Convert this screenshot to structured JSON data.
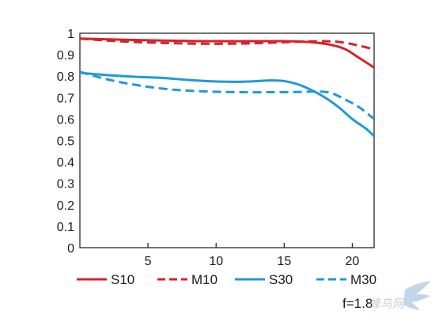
{
  "chart_data": {
    "type": "line",
    "title": "",
    "xlabel": "",
    "ylabel": "",
    "xlim": [
      0,
      21.6
    ],
    "ylim": [
      0,
      1
    ],
    "x_ticks": [
      5,
      10,
      15,
      20
    ],
    "x_tick_labels": [
      "5",
      "10",
      "15",
      "20"
    ],
    "y_ticks": [
      0,
      0.1,
      0.2,
      0.3,
      0.4,
      0.5,
      0.6,
      0.7,
      0.8,
      0.9,
      1
    ],
    "y_tick_labels": [
      "0",
      "0.1",
      "0.2",
      "0.3",
      "0.4",
      "0.5",
      "0.6",
      "0.7",
      "0.8",
      "0.9",
      "1"
    ],
    "grid": false,
    "legend_position": "bottom",
    "series": [
      {
        "name": "S10",
        "color": "#d9212b",
        "dash": "solid",
        "points": [
          [
            0,
            0.975
          ],
          [
            3,
            0.97
          ],
          [
            6,
            0.966
          ],
          [
            9,
            0.963
          ],
          [
            12,
            0.963
          ],
          [
            15,
            0.963
          ],
          [
            17,
            0.958
          ],
          [
            18.5,
            0.945
          ],
          [
            19.5,
            0.925
          ],
          [
            20.5,
            0.885
          ],
          [
            21.6,
            0.84
          ]
        ]
      },
      {
        "name": "M10",
        "color": "#d9212b",
        "dash": "dashed",
        "points": [
          [
            0,
            0.975
          ],
          [
            3,
            0.962
          ],
          [
            6,
            0.955
          ],
          [
            9,
            0.951
          ],
          [
            12,
            0.952
          ],
          [
            15,
            0.958
          ],
          [
            17,
            0.962
          ],
          [
            18.5,
            0.962
          ],
          [
            19.5,
            0.955
          ],
          [
            20.5,
            0.942
          ],
          [
            21.6,
            0.925
          ]
        ]
      },
      {
        "name": "S30",
        "color": "#1e9ad8",
        "dash": "solid",
        "points": [
          [
            0,
            0.815
          ],
          [
            2,
            0.805
          ],
          [
            4,
            0.797
          ],
          [
            6,
            0.792
          ],
          [
            8,
            0.782
          ],
          [
            10,
            0.775
          ],
          [
            12,
            0.774
          ],
          [
            14,
            0.78
          ],
          [
            15,
            0.777
          ],
          [
            16,
            0.762
          ],
          [
            17,
            0.735
          ],
          [
            18,
            0.7
          ],
          [
            19,
            0.655
          ],
          [
            20,
            0.6
          ],
          [
            21,
            0.555
          ],
          [
            21.6,
            0.52
          ]
        ]
      },
      {
        "name": "M30",
        "color": "#1e9ad8",
        "dash": "dashed",
        "points": [
          [
            0,
            0.82
          ],
          [
            2,
            0.785
          ],
          [
            4,
            0.76
          ],
          [
            6,
            0.742
          ],
          [
            8,
            0.732
          ],
          [
            10,
            0.727
          ],
          [
            12,
            0.725
          ],
          [
            14,
            0.725
          ],
          [
            16,
            0.726
          ],
          [
            17.5,
            0.728
          ],
          [
            18.5,
            0.72
          ],
          [
            19.5,
            0.69
          ],
          [
            20.5,
            0.655
          ],
          [
            21.6,
            0.6
          ]
        ]
      }
    ],
    "annotation": "f=1.8",
    "watermark": "蜂鸟网"
  }
}
